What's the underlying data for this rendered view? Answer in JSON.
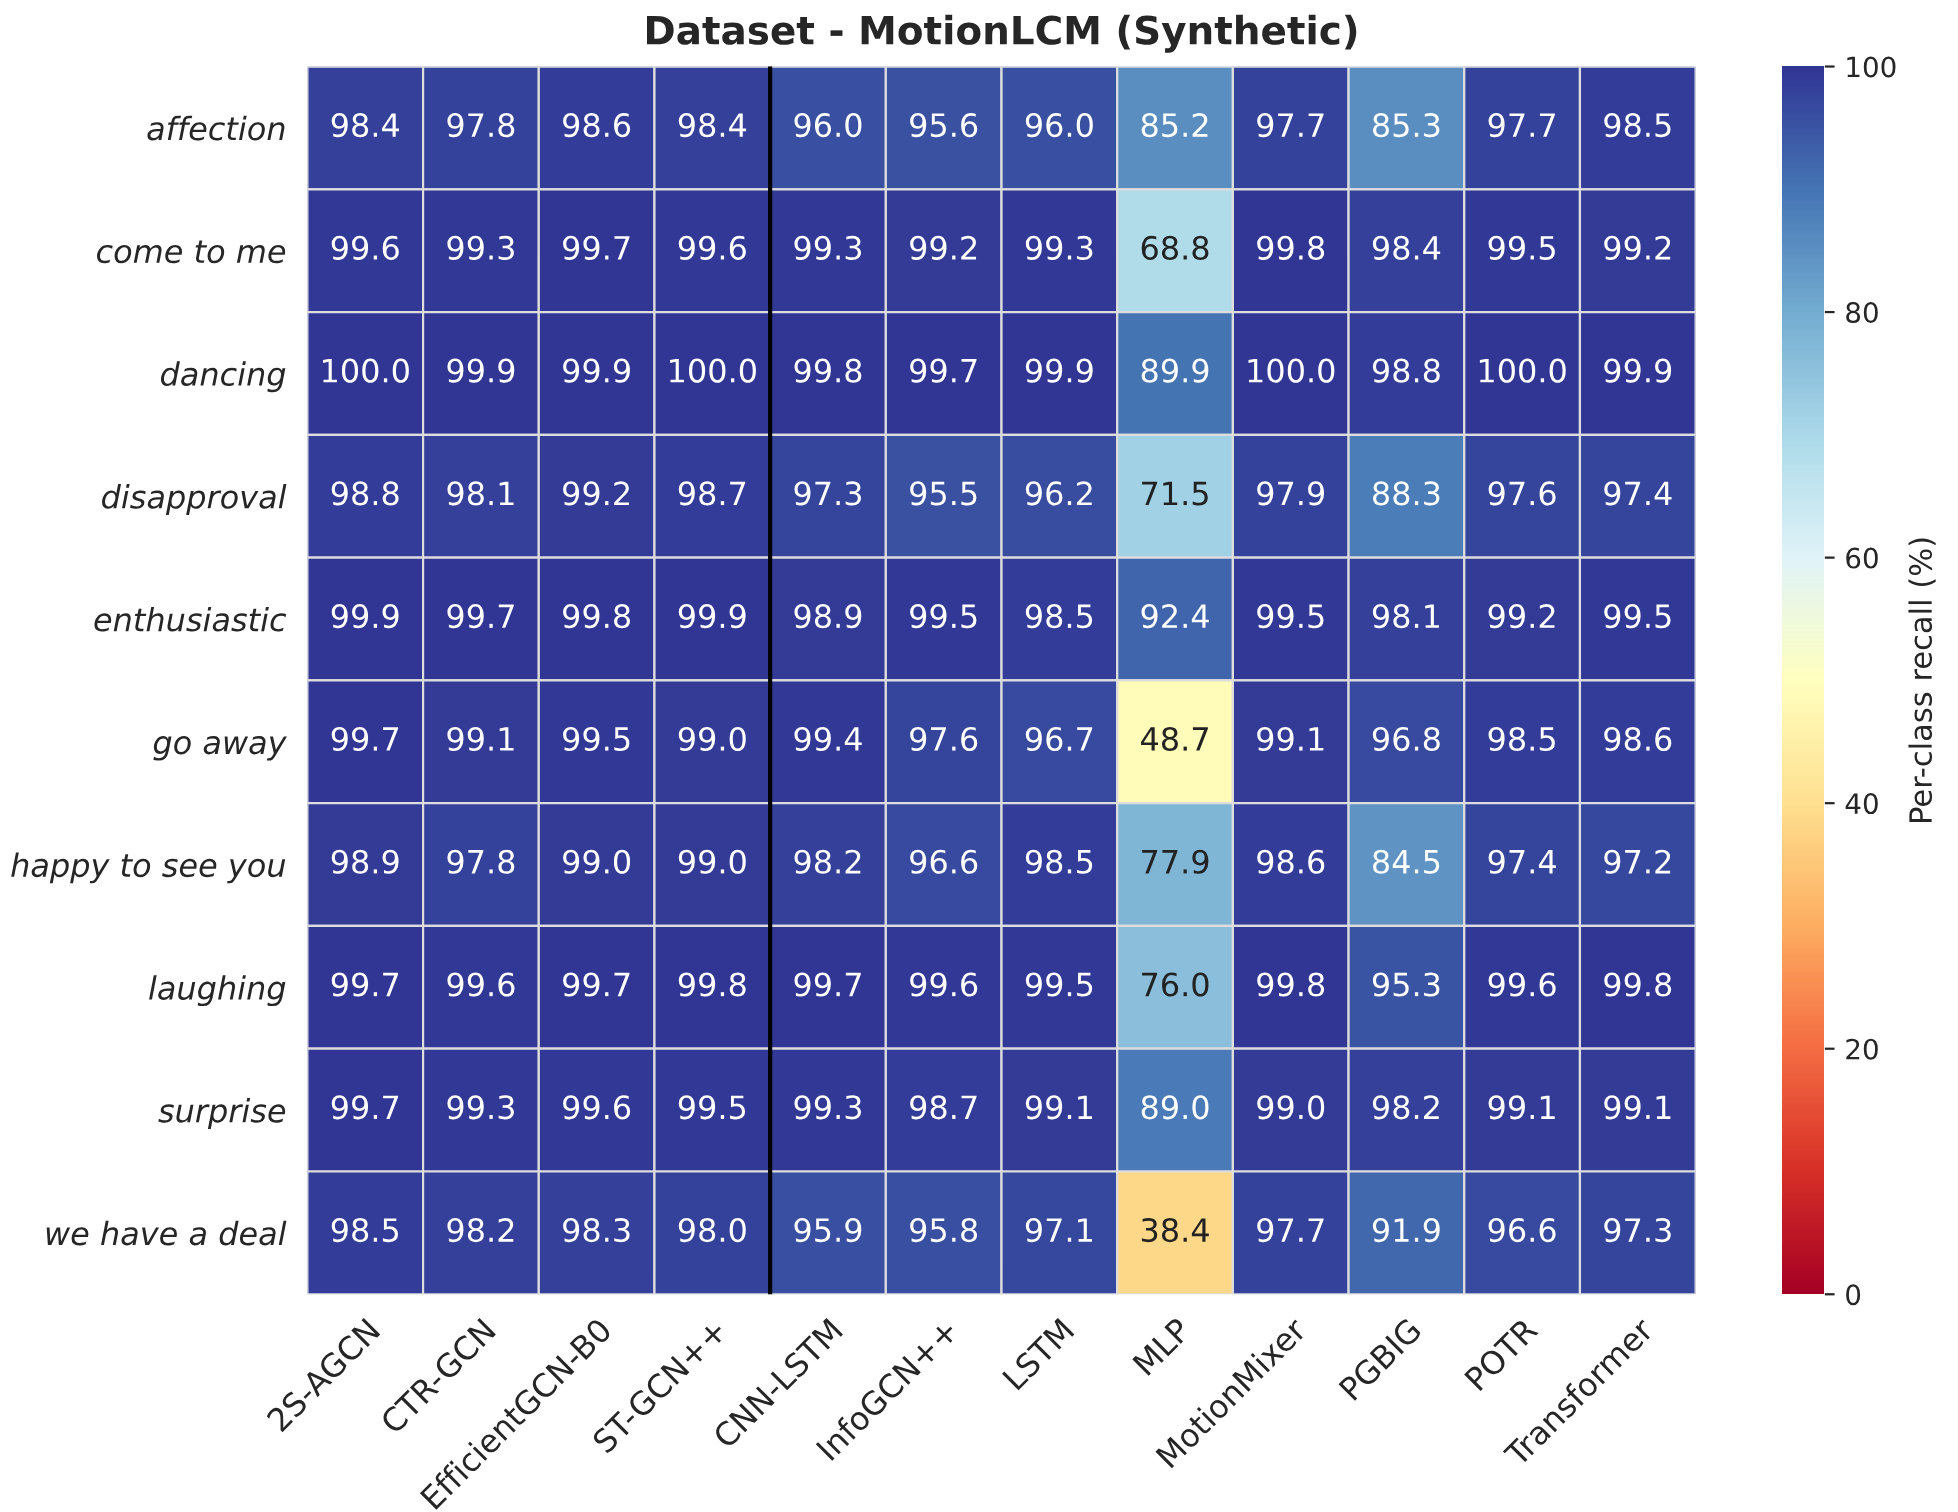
{
  "chart_data": {
    "type": "heatmap",
    "title": "Dataset - MotionLCM (Synthetic)",
    "clabel": "Per-class recall (%)",
    "categories": [
      "2S-AGCN",
      "CTR-GCN",
      "EfficientGCN-B0",
      "ST-GCN++",
      "CNN-LSTM",
      "InfoGCN++",
      "LSTM",
      "MLP",
      "MotionMixer",
      "PGBIG",
      "POTR",
      "Transformer"
    ],
    "y_categories": [
      "affection",
      "come to me",
      "dancing",
      "disapproval",
      "enthusiastic",
      "go away",
      "happy to see you",
      "laughing",
      "surprise",
      "we have a deal"
    ],
    "cells": [
      [
        98.4,
        97.8,
        98.6,
        98.4,
        96.0,
        95.6,
        96.0,
        85.2,
        97.7,
        85.3,
        97.7,
        98.5
      ],
      [
        99.6,
        99.3,
        99.7,
        99.6,
        99.3,
        99.2,
        99.3,
        68.8,
        99.8,
        98.4,
        99.5,
        99.2
      ],
      [
        100.0,
        99.9,
        99.9,
        100.0,
        99.8,
        99.7,
        99.9,
        89.9,
        100.0,
        98.8,
        100.0,
        99.9
      ],
      [
        98.8,
        98.1,
        99.2,
        98.7,
        97.3,
        95.5,
        96.2,
        71.5,
        97.9,
        88.3,
        97.6,
        97.4
      ],
      [
        99.9,
        99.7,
        99.8,
        99.9,
        98.9,
        99.5,
        98.5,
        92.4,
        99.5,
        98.1,
        99.2,
        99.5
      ],
      [
        99.7,
        99.1,
        99.5,
        99.0,
        99.4,
        97.6,
        96.7,
        48.7,
        99.1,
        96.8,
        98.5,
        98.6
      ],
      [
        98.9,
        97.8,
        99.0,
        99.0,
        98.2,
        96.6,
        98.5,
        77.9,
        98.6,
        84.5,
        97.4,
        97.2
      ],
      [
        99.7,
        99.6,
        99.7,
        99.8,
        99.7,
        99.6,
        99.5,
        76.0,
        99.8,
        95.3,
        99.6,
        99.8
      ],
      [
        99.7,
        99.3,
        99.6,
        99.5,
        99.3,
        98.7,
        99.1,
        89.0,
        99.0,
        98.2,
        99.1,
        99.1
      ],
      [
        98.5,
        98.2,
        98.3,
        98.0,
        95.9,
        95.8,
        97.1,
        38.4,
        97.7,
        91.9,
        96.6,
        97.3
      ]
    ],
    "cell_labels": [
      [
        "98.4",
        "97.8",
        "98.6",
        "98.4",
        "96.0",
        "95.6",
        "96.0",
        "85.2",
        "97.7",
        "85.3",
        "97.7",
        "98.5"
      ],
      [
        "99.6",
        "99.3",
        "99.7",
        "99.6",
        "99.3",
        "99.2",
        "99.3",
        "68.8",
        "99.8",
        "98.4",
        "99.5",
        "99.2"
      ],
      [
        "100.0",
        "99.9",
        "99.9",
        "100.0",
        "99.8",
        "99.7",
        "99.9",
        "89.9",
        "100.0",
        "98.8",
        "100.0",
        "99.9"
      ],
      [
        "98.8",
        "98.1",
        "99.2",
        "98.7",
        "97.3",
        "95.5",
        "96.2",
        "71.5",
        "97.9",
        "88.3",
        "97.6",
        "97.4"
      ],
      [
        "99.9",
        "99.7",
        "99.8",
        "99.9",
        "98.9",
        "99.5",
        "98.5",
        "92.4",
        "99.5",
        "98.1",
        "99.2",
        "99.5"
      ],
      [
        "99.7",
        "99.1",
        "99.5",
        "99.0",
        "99.4",
        "97.6",
        "96.7",
        "48.7",
        "99.1",
        "96.8",
        "98.5",
        "98.6"
      ],
      [
        "98.9",
        "97.8",
        "99.0",
        "99.0",
        "98.2",
        "96.6",
        "98.5",
        "77.9",
        "98.6",
        "84.5",
        "97.4",
        "97.2"
      ],
      [
        "99.7",
        "99.6",
        "99.7",
        "99.8",
        "99.7",
        "99.6",
        "99.5",
        "76.0",
        "99.8",
        "95.3",
        "99.6",
        "99.8"
      ],
      [
        "99.7",
        "99.3",
        "99.6",
        "99.5",
        "99.3",
        "98.7",
        "99.1",
        "89.0",
        "99.0",
        "98.2",
        "99.1",
        "99.1"
      ],
      [
        "98.5",
        "98.2",
        "98.3",
        "98.0",
        "95.9",
        "95.8",
        "97.1",
        "38.4",
        "97.7",
        "91.9",
        "96.6",
        "97.3"
      ]
    ],
    "clim": [
      0,
      100
    ],
    "cticks": [
      0,
      20,
      40,
      60,
      80,
      100
    ],
    "data_labels": true
  }
}
